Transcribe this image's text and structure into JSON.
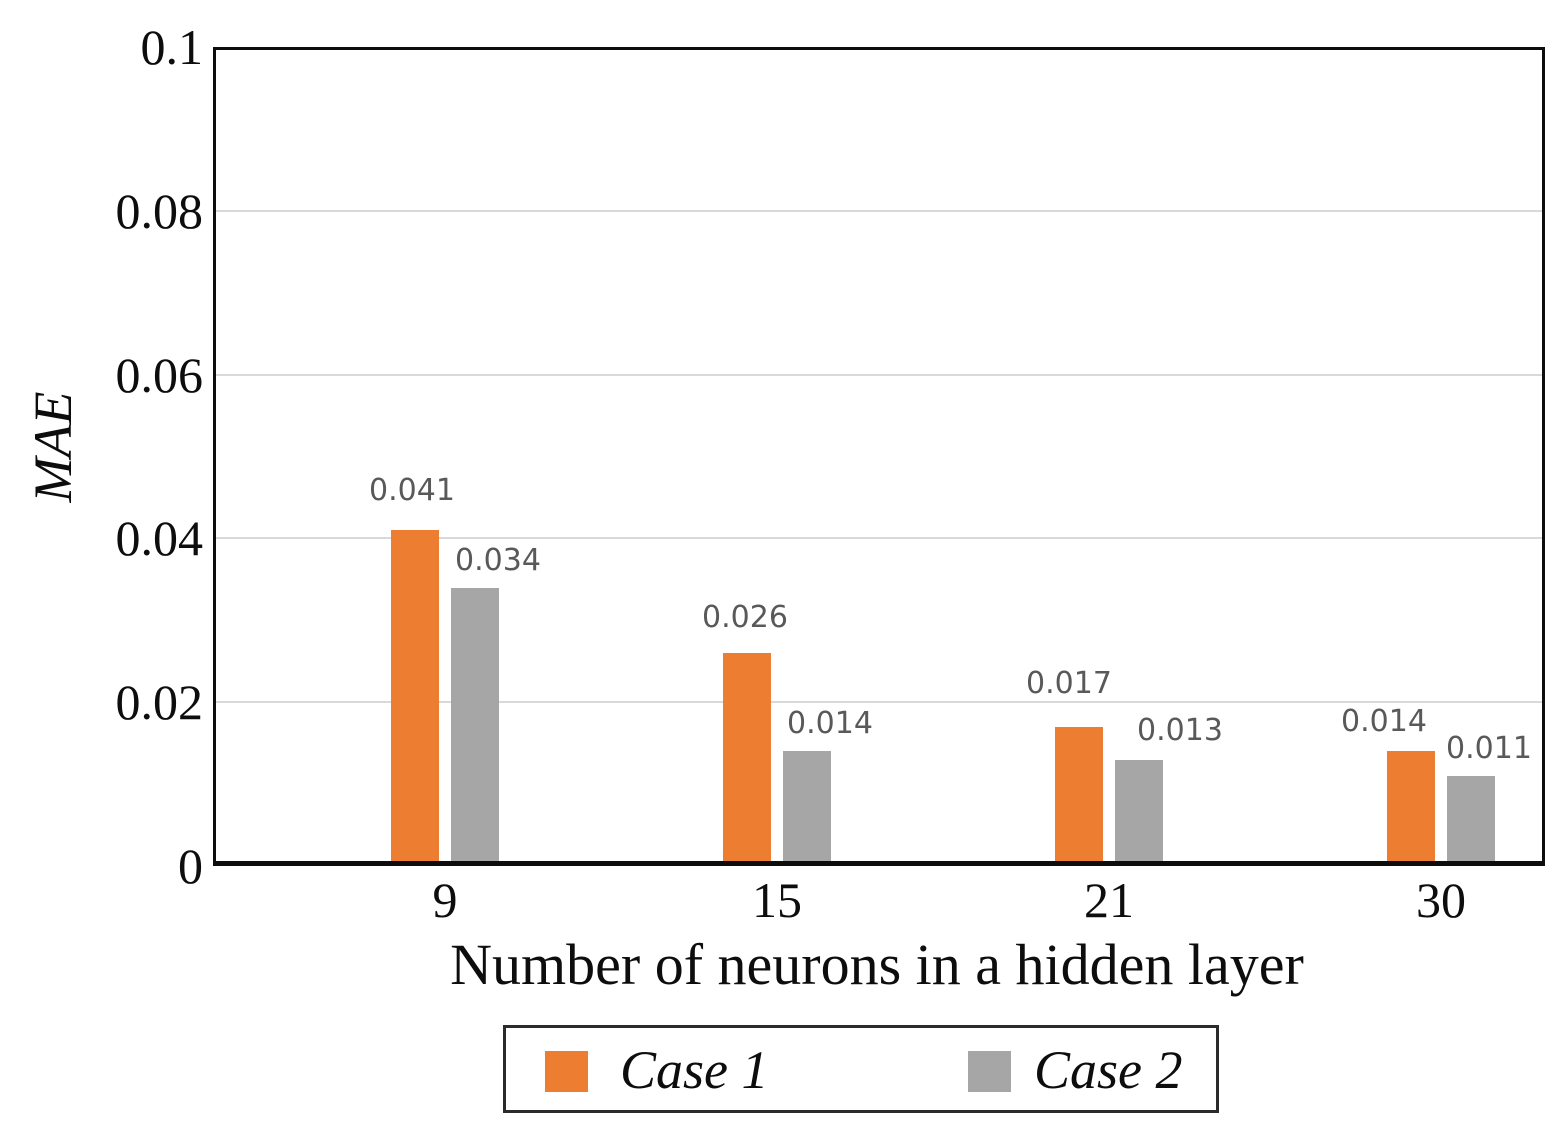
{
  "chart_data": {
    "type": "bar",
    "title": "",
    "xlabel": "Number of neurons in a hidden layer",
    "ylabel": "MAE",
    "categories": [
      "9",
      "15",
      "21",
      "30"
    ],
    "series": [
      {
        "name": "Case 1",
        "color": "#ED7D31",
        "values": [
          0.041,
          0.026,
          0.017,
          0.014
        ],
        "value_labels": [
          "0.041",
          "0.026",
          "0.017",
          "0.014"
        ],
        "label_dx": [
          -3,
          -2,
          -10,
          -27
        ],
        "label_dy": [
          -12,
          -8,
          -16,
          -2
        ]
      },
      {
        "name": "Case 2",
        "color": "#A6A6A6",
        "values": [
          0.034,
          0.014,
          0.013,
          0.011
        ],
        "value_labels": [
          "0.034",
          "0.014",
          "0.013",
          "0.011"
        ],
        "label_dx": [
          23,
          23,
          41,
          18
        ],
        "label_dy": [
          0,
          0,
          -2,
          0
        ]
      }
    ],
    "ylim": [
      0,
      0.1
    ],
    "yticks": [
      0,
      0.02,
      0.04,
      0.06,
      0.08,
      0.1
    ],
    "ytick_labels": [
      "0",
      "0.02",
      "0.04",
      "0.06",
      "0.08",
      "0.1"
    ],
    "grid": "horizontal",
    "gridline_values": [
      0.02,
      0.04,
      0.06,
      0.08
    ],
    "data_labels": "outside-end",
    "legend_position": "bottom",
    "colors": {
      "grid": "#D9D9D9",
      "axis": "#0d0d0d",
      "data_label": "#595959",
      "case1": "#ED7D31",
      "case2": "#A6A6A6"
    }
  }
}
